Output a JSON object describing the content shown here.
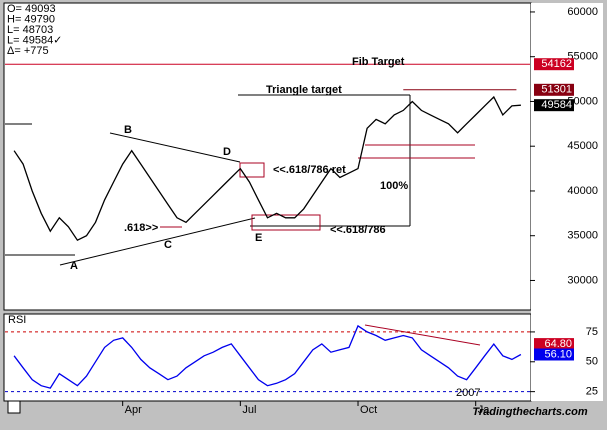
{
  "quote": {
    "lines": [
      "O=  49093",
      "H=  49790",
      "L=  48703",
      "L=  49584✓",
      "Δ=   +775"
    ]
  },
  "watermark": "Tradingthecharts.com",
  "annotations": [
    "Fib Target",
    "Triangle target",
    "B",
    "D",
    "<<.618/786 ret",
    "100%",
    ".618>>",
    "C",
    "E",
    "<<.618/786",
    "A"
  ],
  "chart_data": [
    {
      "type": "line",
      "name": "price",
      "color": "#000000",
      "x": [
        1,
        2,
        3,
        4,
        5,
        6,
        7,
        8,
        9,
        10,
        11,
        12,
        13,
        14,
        15,
        16,
        17,
        18,
        19,
        20,
        21,
        22,
        23,
        24,
        25,
        26,
        27,
        28,
        29,
        30,
        31,
        32,
        33,
        34,
        35,
        36,
        37,
        38,
        39,
        40,
        41,
        42,
        43,
        44,
        45,
        46,
        47,
        48,
        49,
        50,
        51,
        52,
        53,
        54,
        55,
        56,
        57
      ],
      "values": [
        44500,
        43000,
        40000,
        37500,
        35500,
        37000,
        36000,
        34500,
        35000,
        36500,
        39000,
        41000,
        43000,
        44500,
        43000,
        41500,
        40000,
        38500,
        37000,
        36500,
        37500,
        38500,
        39500,
        40500,
        41500,
        42500,
        41000,
        39000,
        37000,
        37500,
        37000,
        37000,
        38000,
        39500,
        41000,
        42500,
        41500,
        42000,
        42500,
        47000,
        48000,
        47500,
        48500,
        49000,
        50000,
        49000,
        48500,
        48000,
        47500,
        46500,
        47500,
        48500,
        49500,
        50500,
        48500,
        49500,
        49584
      ],
      "xlim": [
        0,
        58
      ],
      "ylim": [
        26700,
        61000
      ],
      "yticks": [
        60000,
        55000,
        50000,
        45000,
        40000,
        35000,
        30000
      ],
      "levels": [
        {
          "value": 54162,
          "color": "#cc0022"
        },
        {
          "value": 51301,
          "color": "#880011"
        },
        {
          "value": 49584,
          "color": "#000000"
        }
      ]
    },
    {
      "type": "line",
      "name": "RSI",
      "color": "#0000ee",
      "x": [
        1,
        2,
        3,
        4,
        5,
        6,
        7,
        8,
        9,
        10,
        11,
        12,
        13,
        14,
        15,
        16,
        17,
        18,
        19,
        20,
        21,
        22,
        23,
        24,
        25,
        26,
        27,
        28,
        29,
        30,
        31,
        32,
        33,
        34,
        35,
        36,
        37,
        38,
        39,
        40,
        41,
        42,
        43,
        44,
        45,
        46,
        47,
        48,
        49,
        50,
        51,
        52,
        53,
        54,
        55,
        56,
        57
      ],
      "values": [
        55,
        45,
        35,
        30,
        28,
        40,
        35,
        30,
        38,
        50,
        62,
        68,
        70,
        62,
        52,
        45,
        40,
        35,
        38,
        45,
        50,
        55,
        58,
        62,
        65,
        55,
        45,
        35,
        30,
        32,
        35,
        40,
        50,
        60,
        65,
        58,
        60,
        62,
        80,
        75,
        72,
        68,
        70,
        72,
        70,
        60,
        55,
        50,
        45,
        38,
        35,
        45,
        55,
        64.8,
        55,
        52,
        56.1
      ],
      "xlim": [
        0,
        58
      ],
      "ylim": [
        18,
        90
      ],
      "yticks": [
        75,
        50,
        25
      ],
      "levels": [
        {
          "value": 64.8,
          "label": "64.80",
          "color": "#cc0022"
        },
        {
          "value": 56.1,
          "label": "56.10",
          "color": "#0000ee"
        }
      ],
      "year_label": "2007",
      "xticks": [
        {
          "value": 13,
          "label": "Apr"
        },
        {
          "value": 26,
          "label": "Jul"
        },
        {
          "value": 39,
          "label": "Oct"
        },
        {
          "value": 52,
          "label": "Ja"
        }
      ]
    }
  ]
}
